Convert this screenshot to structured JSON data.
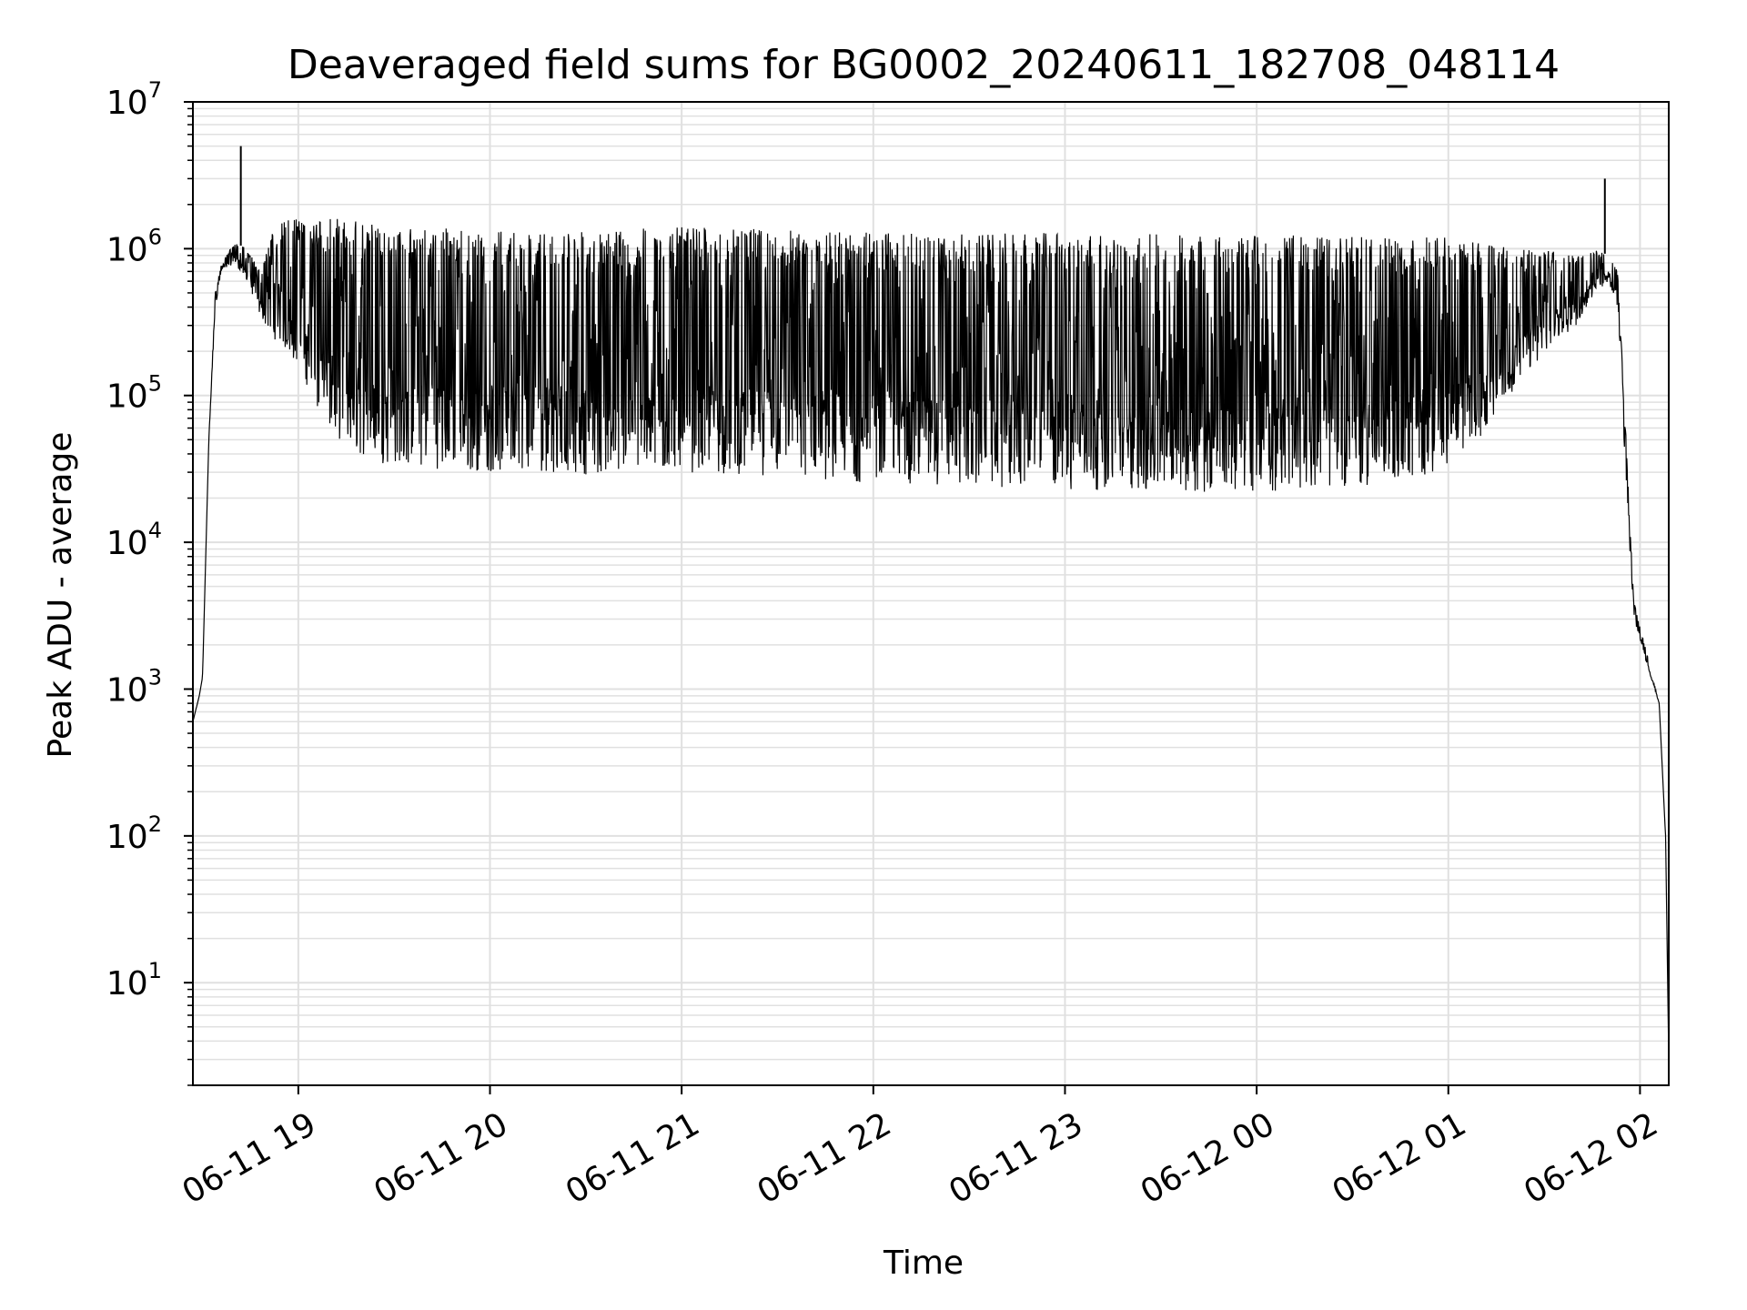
{
  "chart_data": {
    "type": "line",
    "title": "Deaveraged field sums for BG0002_20240611_182708_048114",
    "xlabel": "Time",
    "ylabel": "Peak ADU - average",
    "y_scale": "log",
    "ylim": [
      2,
      10000000
    ],
    "xlim": [
      "2024-06-11 18:27",
      "2024-06-12 02:09"
    ],
    "y_ticks": [
      {
        "value": 10,
        "base": "10",
        "exp": "1"
      },
      {
        "value": 100,
        "base": "10",
        "exp": "2"
      },
      {
        "value": 1000,
        "base": "10",
        "exp": "3"
      },
      {
        "value": 10000,
        "base": "10",
        "exp": "4"
      },
      {
        "value": 100000,
        "base": "10",
        "exp": "5"
      },
      {
        "value": 1000000,
        "base": "10",
        "exp": "6"
      },
      {
        "value": 10000000,
        "base": "10",
        "exp": "7"
      }
    ],
    "x_ticks": [
      {
        "time": "2024-06-11 19:00",
        "label": "06-11 19"
      },
      {
        "time": "2024-06-11 20:00",
        "label": "06-11 20"
      },
      {
        "time": "2024-06-11 21:00",
        "label": "06-11 21"
      },
      {
        "time": "2024-06-11 22:00",
        "label": "06-11 22"
      },
      {
        "time": "2024-06-11 23:00",
        "label": "06-11 23"
      },
      {
        "time": "2024-06-12 00:00",
        "label": "06-12 00"
      },
      {
        "time": "2024-06-12 01:00",
        "label": "06-12 01"
      },
      {
        "time": "2024-06-12 02:00",
        "label": "06-12 02"
      }
    ],
    "grid": true,
    "line_color": "#000000",
    "grid_color": "#e0e0e0",
    "series": [
      {
        "envelope": {
          "time": [
            "2024-06-11 18:27",
            "2024-06-11 18:29",
            "2024-06-11 18:30",
            "2024-06-11 18:32",
            "2024-06-11 18:34",
            "2024-06-11 18:36",
            "2024-06-11 18:40",
            "2024-06-11 18:44",
            "2024-06-11 18:48",
            "2024-06-11 18:52",
            "2024-06-11 18:56",
            "2024-06-11 19:00",
            "2024-06-11 19:06",
            "2024-06-11 19:14",
            "2024-06-11 19:24",
            "2024-06-11 19:40",
            "2024-06-11 20:00",
            "2024-06-11 20:20",
            "2024-06-11 20:40",
            "2024-06-11 21:00",
            "2024-06-11 21:30",
            "2024-06-11 22:00",
            "2024-06-11 22:30",
            "2024-06-11 23:00",
            "2024-06-11 23:30",
            "2024-06-12 00:00",
            "2024-06-12 00:30",
            "2024-06-12 00:50",
            "2024-06-12 01:00",
            "2024-06-12 01:10",
            "2024-06-12 01:20",
            "2024-06-12 01:30",
            "2024-06-12 01:40",
            "2024-06-12 01:46",
            "2024-06-12 01:50",
            "2024-06-12 01:53",
            "2024-06-12 01:55",
            "2024-06-12 01:58",
            "2024-06-12 02:02",
            "2024-06-12 02:06",
            "2024-06-12 02:08",
            "2024-06-12 02:09"
          ],
          "low": [
            600,
            900,
            1200,
            50000,
            400000,
            700000,
            800000,
            600000,
            350000,
            250000,
            200000,
            160000,
            80000,
            45000,
            35000,
            32000,
            30000,
            30000,
            28000,
            30000,
            28000,
            25000,
            24000,
            23000,
            22000,
            22000,
            24000,
            26000,
            35000,
            50000,
            100000,
            200000,
            300000,
            500000,
            600000,
            400000,
            50000,
            3000,
            1500,
            800,
            100,
            3
          ],
          "high": [
            600,
            900,
            1200,
            50000,
            500000,
            800000,
            1100000,
            1000000,
            700000,
            1400000,
            1600000,
            1600000,
            1600000,
            1600000,
            1500000,
            1400000,
            1400000,
            1300000,
            1350000,
            1400000,
            1350000,
            1300000,
            1250000,
            1300000,
            1250000,
            1250000,
            1200000,
            1200000,
            1200000,
            1100000,
            1000000,
            1000000,
            900000,
            1000000,
            900000,
            700000,
            100000,
            4000,
            1800,
            800,
            100,
            3
          ]
        },
        "spikes": [
          {
            "time": "2024-06-11 18:42",
            "value": 5000000
          },
          {
            "time": "2024-06-12 01:49",
            "value": 3000000
          }
        ]
      }
    ]
  }
}
